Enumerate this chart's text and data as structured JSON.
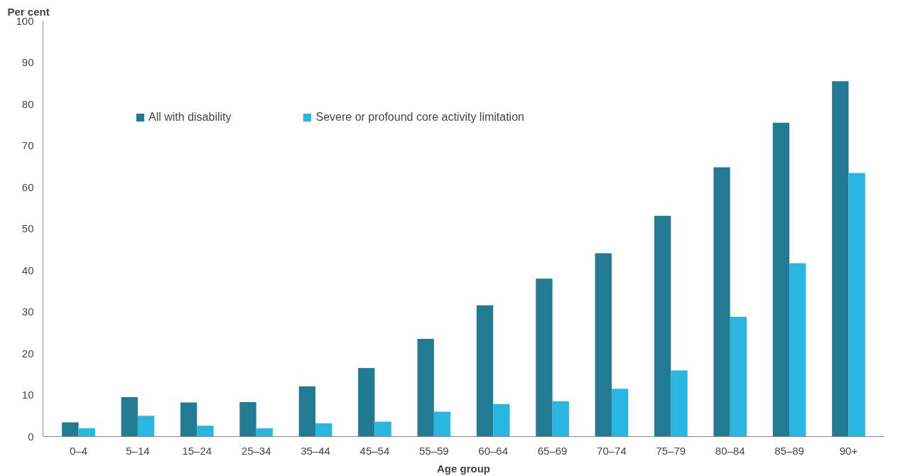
{
  "chart_data": {
    "type": "bar",
    "ylabel": "Per cent",
    "xlabel": "Age group",
    "categories": [
      "0–4",
      "5–14",
      "15–24",
      "25–34",
      "35–44",
      "45–54",
      "55–59",
      "60–64",
      "65–69",
      "70–74",
      "75–79",
      "80–84",
      "85–89",
      "90+"
    ],
    "series": [
      {
        "name": "All with disability",
        "color": "#237a93",
        "values": [
          3.4,
          9.5,
          8.2,
          8.3,
          12.1,
          16.5,
          23.5,
          31.6,
          38.0,
          44.1,
          53.1,
          64.8,
          75.5,
          85.5
        ]
      },
      {
        "name": "Severe or profound core activity limitation",
        "color": "#29b6e0",
        "values": [
          2.0,
          5.0,
          2.6,
          2.0,
          3.2,
          3.6,
          6.0,
          7.8,
          8.5,
          11.5,
          15.9,
          28.8,
          41.7,
          63.4
        ]
      }
    ],
    "ylim": [
      0,
      100
    ],
    "yticks": [
      0,
      10,
      20,
      30,
      40,
      50,
      60,
      70,
      80,
      90,
      100
    ],
    "grid": false,
    "legend": "top left"
  }
}
